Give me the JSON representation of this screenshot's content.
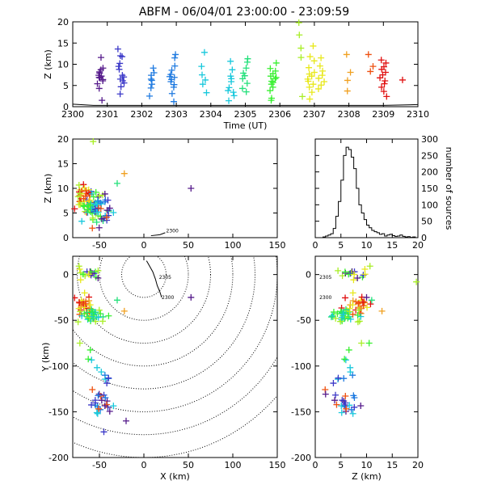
{
  "title": "ABFM - 06/04/01 23:00:00 - 23:09:59",
  "color_scale": [
    "#551a8b",
    "#3b38c8",
    "#1f7ae0",
    "#19c8dc",
    "#22e07a",
    "#38f030",
    "#a8ee26",
    "#e8e81a",
    "#f0a020",
    "#ee5010",
    "#e01010"
  ],
  "chart_data": [
    {
      "type": "scatter",
      "name": "time-height",
      "xlabel": "Time (UT)",
      "ylabel": "Z (km)",
      "xlim": [
        2300,
        2310
      ],
      "ylim": [
        0,
        20
      ],
      "xticks": [
        "2300",
        "2301",
        "2302",
        "2303",
        "2304",
        "2305",
        "2306",
        "2307",
        "2308",
        "2309",
        "2310"
      ],
      "yticks": [
        "0",
        "5",
        "10",
        "15",
        "20"
      ],
      "marker": "+",
      "clusters": [
        {
          "t": 2300.8,
          "z": [
            7.4,
            6.8,
            6.1,
            7.9,
            8.7,
            6.4,
            5.4,
            7.2,
            9.1,
            4.3,
            11.6,
            1.5,
            6.9,
            8.2
          ],
          "color_index": 0
        },
        {
          "t": 2301.4,
          "z": [
            8.8,
            6.5,
            7.4,
            10.2,
            11.8,
            5.6,
            13.6,
            4.7,
            7.0,
            9.5,
            12.0,
            6.1,
            3.0
          ],
          "color_index": 1
        },
        {
          "t": 2302.3,
          "z": [
            6.5,
            5.3,
            8.0,
            4.4,
            7.4,
            9.1,
            2.5,
            6.2
          ],
          "color_index": 2
        },
        {
          "t": 2302.9,
          "z": [
            7.6,
            5.2,
            9.6,
            6.4,
            3.1,
            11.5,
            8.6,
            4.6,
            6.9,
            5.9,
            1.2,
            12.3,
            7.1
          ],
          "color_index": 2
        },
        {
          "t": 2303.8,
          "z": [
            7.5,
            5.3,
            3.3,
            9.5,
            12.8,
            6.3
          ],
          "color_index": 3
        },
        {
          "t": 2304.6,
          "z": [
            4.5,
            5.9,
            3.4,
            7.2,
            6.6,
            8.7,
            1.4,
            10.7,
            2.6,
            3.8
          ],
          "color_index": 3
        },
        {
          "t": 2305.0,
          "z": [
            6.6,
            7.3,
            5.5,
            4.3,
            9.1,
            10.5,
            7.9,
            3.5,
            11.3
          ],
          "color_index": 4
        },
        {
          "t": 2305.8,
          "z": [
            5.3,
            6.0,
            6.6,
            7.2,
            7.8,
            8.4,
            9.0,
            4.6,
            10.3,
            3.8,
            5.7,
            6.9,
            1.5,
            2.0
          ],
          "color_index": 5
        },
        {
          "t": 2306.6,
          "z": [
            19.8,
            13.8,
            2.4,
            16.9,
            11.6
          ],
          "color_index": 6
        },
        {
          "t": 2306.9,
          "z": [
            6.0,
            7.2,
            8.1,
            9.2,
            11.8,
            14.3,
            4.6,
            3.4,
            5.3,
            7.7,
            1.8,
            10.8,
            6.5
          ],
          "color_index": 7
        },
        {
          "t": 2307.2,
          "z": [
            4.2,
            5.1,
            5.9,
            6.7,
            7.4,
            8.4,
            9.6,
            11.5
          ],
          "color_index": 7
        },
        {
          "t": 2308.0,
          "z": [
            12.3,
            6.2,
            8.1,
            3.7
          ],
          "color_index": 8
        },
        {
          "t": 2308.6,
          "z": [
            12.3,
            8.3,
            9.5
          ],
          "color_index": 9
        },
        {
          "t": 2309.0,
          "z": [
            4.6,
            5.4,
            6.1,
            6.8,
            7.5,
            8.1,
            8.8,
            9.4,
            10.3,
            11.0,
            3.6,
            2.4
          ],
          "color_index": 10
        },
        {
          "t": 2309.6,
          "z": [
            6.3
          ],
          "color_index": 10
        }
      ]
    },
    {
      "type": "scatter",
      "name": "x-z",
      "xlabel": "",
      "ylabel": "Z (km)",
      "xlim": [
        -80,
        150
      ],
      "ylim": [
        0,
        20
      ],
      "xticks": [
        "-50",
        "0",
        "50",
        "100",
        "150"
      ],
      "yticks": [
        "0",
        "5",
        "10",
        "15",
        "20"
      ],
      "marker": "+",
      "annotations": [
        {
          "text": "2300",
          "x": 25,
          "z": 1.1
        }
      ]
    },
    {
      "type": "bar",
      "name": "height-histogram",
      "xlabel": "",
      "ylabel": "number of sources",
      "xlim": [
        0,
        20
      ],
      "ylim": [
        0,
        300
      ],
      "xticks": [
        "0",
        "5",
        "10",
        "15",
        "20"
      ],
      "yticks": [
        "0",
        "50",
        "100",
        "150",
        "200",
        "250",
        "300"
      ],
      "bin_width": 0.5,
      "values": [
        0,
        0,
        0,
        2,
        5,
        8,
        12,
        28,
        65,
        110,
        175,
        250,
        275,
        268,
        245,
        210,
        150,
        100,
        75,
        55,
        38,
        30,
        22,
        18,
        15,
        10,
        12,
        5,
        8,
        10,
        6,
        4,
        5,
        8,
        4,
        2,
        3,
        1,
        2,
        0
      ]
    },
    {
      "type": "scatter",
      "name": "plan-view",
      "xlabel": "X (km)",
      "ylabel": "Y (km)",
      "xlim": [
        -80,
        150
      ],
      "ylim": [
        -200,
        20
      ],
      "xticks": [
        "-50",
        "0",
        "50",
        "100",
        "150"
      ],
      "yticks": [
        "-200",
        "-150",
        "-100",
        "-50",
        "0"
      ],
      "range_rings_km": [
        25,
        50,
        75,
        100,
        125,
        150,
        175,
        200
      ],
      "track": [
        [
          3,
          15
        ],
        [
          6,
          10
        ],
        [
          10,
          3
        ],
        [
          13,
          -5
        ],
        [
          15,
          -12
        ],
        [
          18,
          -19
        ],
        [
          20,
          -25
        ]
      ],
      "annotations": [
        {
          "text": "2305",
          "x": 17,
          "y": -3
        },
        {
          "text": "2300",
          "x": 20,
          "y": -25
        }
      ]
    },
    {
      "type": "scatter",
      "name": "z-y",
      "xlabel": "Z (km)",
      "ylabel": "",
      "xlim": [
        0,
        20
      ],
      "ylim": [
        -200,
        20
      ],
      "xticks": [
        "0",
        "5",
        "10",
        "15",
        "20"
      ],
      "yticks": [
        "-200",
        "-150",
        "-100",
        "-50",
        "0"
      ],
      "marker": "+",
      "annotations": [
        {
          "text": "2305",
          "z": 0.8,
          "y": -3
        },
        {
          "text": "2300",
          "z": 0.8,
          "y": -25
        }
      ]
    }
  ]
}
